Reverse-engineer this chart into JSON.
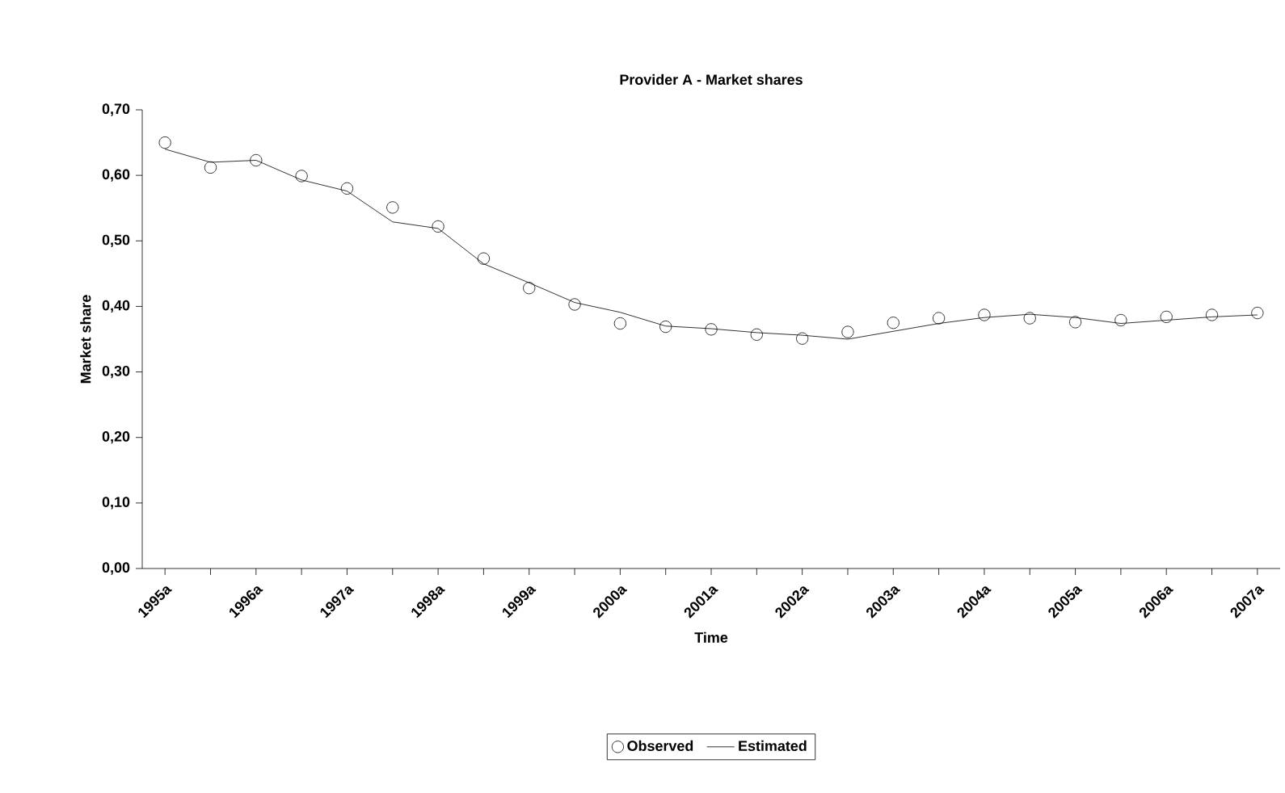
{
  "chart_data": {
    "type": "line",
    "title": "Provider A - Market shares",
    "xlabel": "Time",
    "ylabel": "Market share",
    "categories": [
      "1995a",
      null,
      "1996a",
      null,
      "1997a",
      null,
      "1998a",
      null,
      "1999a",
      null,
      "2000a",
      null,
      "2001a",
      null,
      "2002a",
      null,
      "2003a",
      null,
      "2004a",
      null,
      "2005a",
      null,
      "2006a",
      null,
      "2007a"
    ],
    "ylim": [
      0,
      0.7
    ],
    "yticks": [
      {
        "value": 0,
        "label": "0,00"
      },
      {
        "value": 0.1,
        "label": "0,10"
      },
      {
        "value": 0.2,
        "label": "0,20"
      },
      {
        "value": 0.3,
        "label": "0,30"
      },
      {
        "value": 0.4,
        "label": "0,40"
      },
      {
        "value": 0.5,
        "label": "0,50"
      },
      {
        "value": 0.6,
        "label": "0,60"
      },
      {
        "value": 0.7,
        "label": "0,70"
      }
    ],
    "series": [
      {
        "name": "Observed",
        "type": "scatter",
        "marker": "circle",
        "color": "#000000",
        "values": [
          0.65,
          0.612,
          0.623,
          0.599,
          0.58,
          0.551,
          0.522,
          0.473,
          0.428,
          0.403,
          0.374,
          0.369,
          0.365,
          0.357,
          0.351,
          0.361,
          0.375,
          0.382,
          0.387,
          0.382,
          0.376,
          0.379,
          0.384,
          0.387,
          0.39
        ]
      },
      {
        "name": "Estimated",
        "marker": "none",
        "color": "#000000",
        "values": [
          0.64,
          0.62,
          0.623,
          0.593,
          0.576,
          0.529,
          0.519,
          0.465,
          0.436,
          0.406,
          0.391,
          0.37,
          0.366,
          0.36,
          0.356,
          0.35,
          0.362,
          0.374,
          0.383,
          0.388,
          0.383,
          0.374,
          0.379,
          0.384,
          0.387
        ]
      }
    ],
    "line_style": "solid",
    "legend": "bottom",
    "grid": false
  }
}
